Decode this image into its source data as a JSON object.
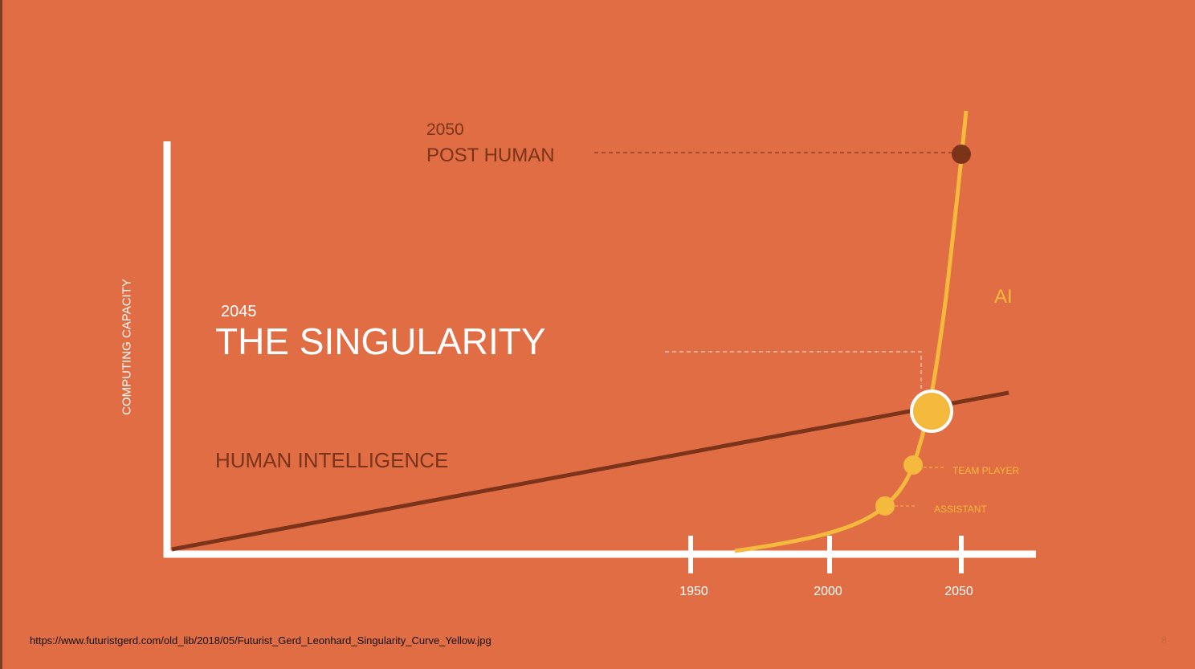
{
  "diagram": {
    "post_human": {
      "year": "2050",
      "title": "POST HUMAN"
    },
    "singularity": {
      "year": "2045",
      "title": "THE SINGULARITY"
    },
    "human_intelligence_label": "HUMAN INTELLIGENCE",
    "ai_label": "AI",
    "milestones": {
      "team_player": "TEAM PLAYER",
      "assistant": "ASSISTANT"
    },
    "y_axis_label": "COMPUTING CAPACITY",
    "x_ticks": [
      "1950",
      "2000",
      "2050"
    ]
  },
  "footer": {
    "source_url": "https://www.futuristgerd.com/old_lib/2018/05/Futurist_Gerd_Leonhard_Singularity_Curve_Yellow.jpg",
    "page_number": "8"
  },
  "colors": {
    "background": "#e06d43",
    "axes": "#ffffff",
    "human_line": "#7b331a",
    "ai_curve": "#f5b93d",
    "post_human_dot": "#7b331a"
  }
}
